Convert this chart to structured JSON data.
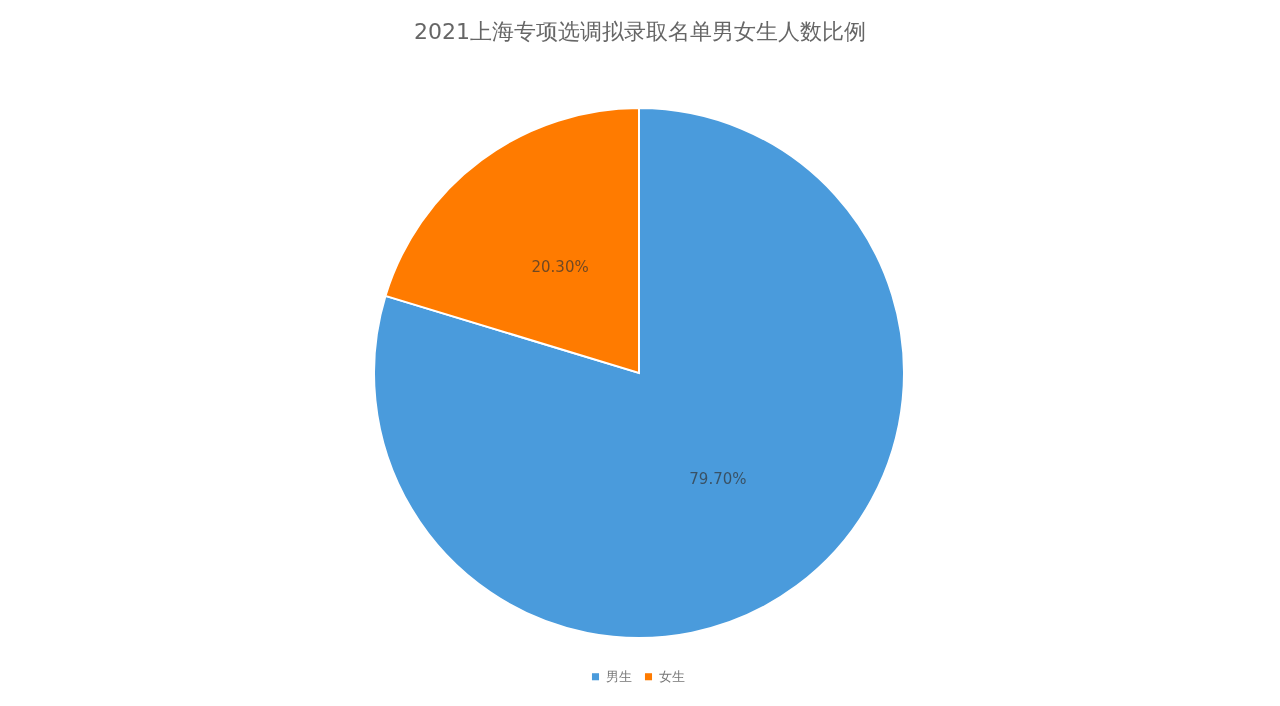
{
  "chart_data": {
    "type": "pie",
    "title": "2021上海专项选调拟录取名单男女生人数比例",
    "categories": [
      "男生",
      "女生"
    ],
    "values": [
      79.7,
      20.3
    ],
    "colors": [
      "#4a9bdc",
      "#ff7b00"
    ],
    "value_labels": [
      "79.70%",
      "20.30%"
    ],
    "legend": "bottom"
  }
}
